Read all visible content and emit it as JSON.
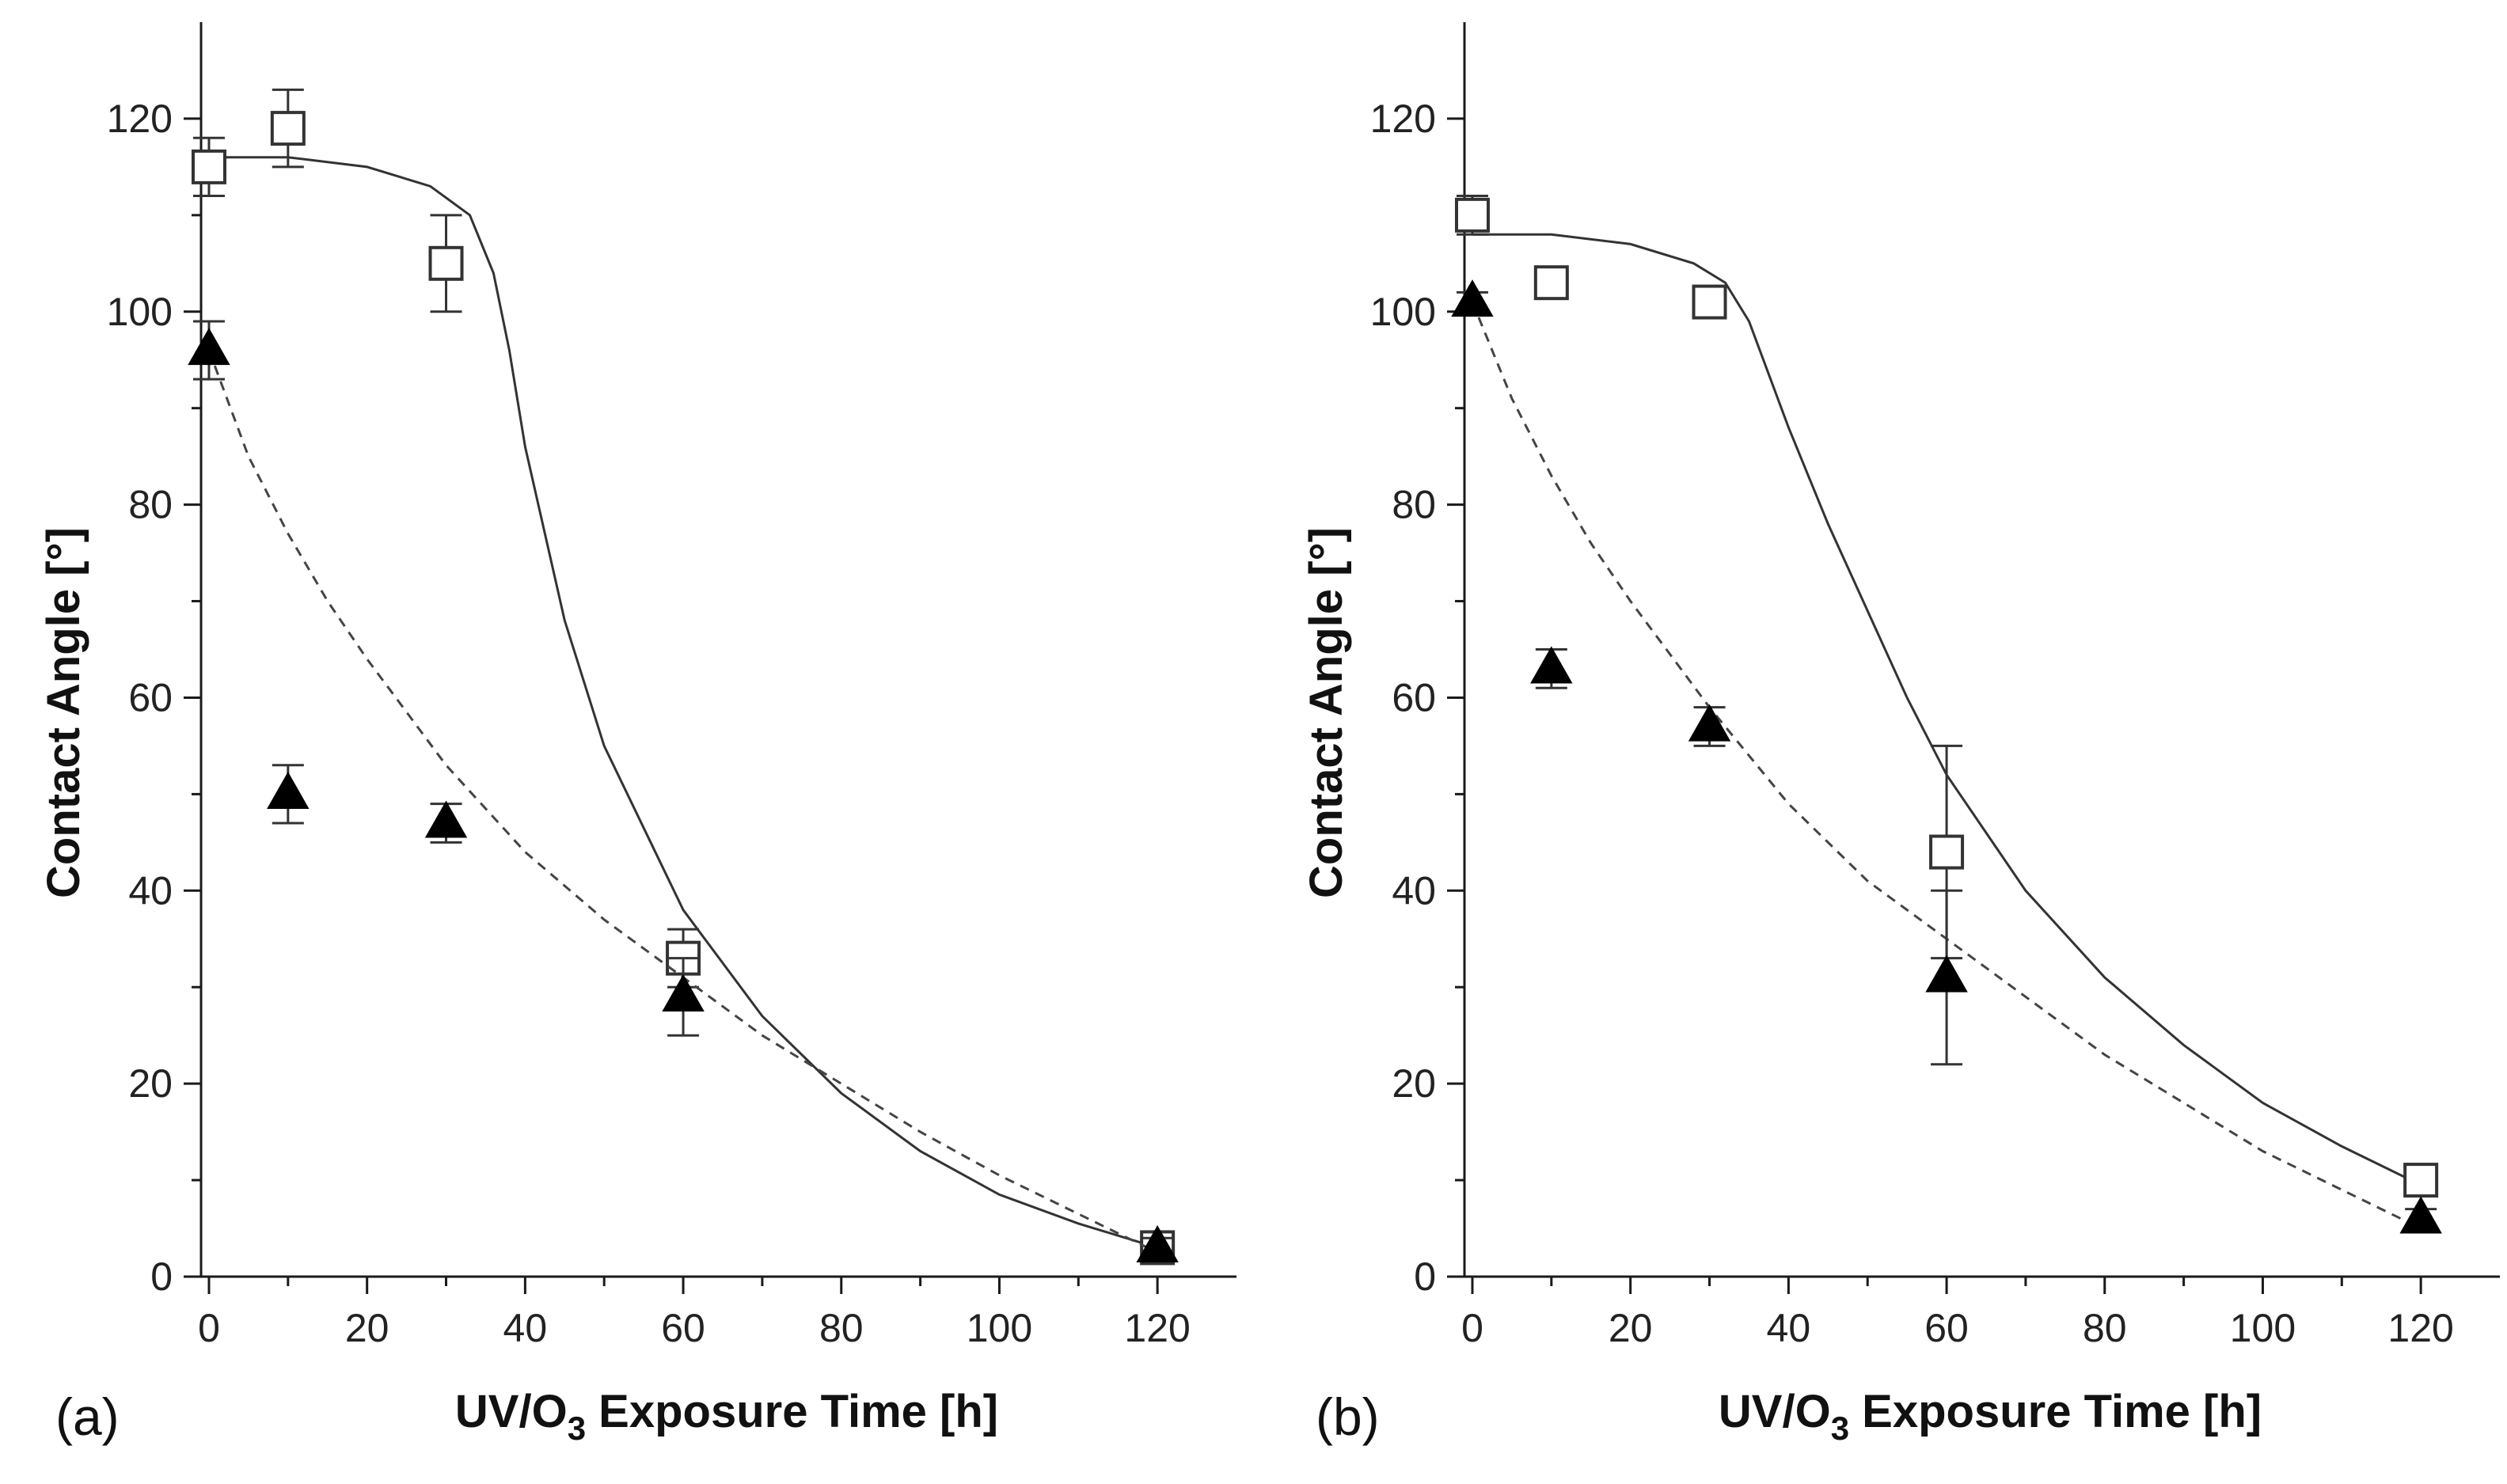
{
  "chart_data": [
    {
      "type": "scatter",
      "panel_label": "(a)",
      "xlabel_pre": "UV/O",
      "xlabel_sub": "3",
      "xlabel_post": " Exposure Time [h]",
      "ylabel": "Contact Angle [°]",
      "xlim": [
        -1,
        130
      ],
      "ylim": [
        0,
        130
      ],
      "xticks": [
        0,
        20,
        40,
        60,
        80,
        100,
        120
      ],
      "yticks": [
        0,
        20,
        40,
        60,
        80,
        100,
        120
      ],
      "series": [
        {
          "name": "open-squares",
          "marker": "square",
          "points": [
            {
              "x": 0,
              "y": 115,
              "err": 3
            },
            {
              "x": 10,
              "y": 119,
              "err": 4
            },
            {
              "x": 30,
              "y": 105,
              "err": 5
            },
            {
              "x": 60,
              "y": 33,
              "err": 3
            },
            {
              "x": 120,
              "y": 3,
              "err": 1
            }
          ],
          "fit": {
            "style": "solid",
            "points": [
              [
                0,
                116
              ],
              [
                10,
                116
              ],
              [
                20,
                115
              ],
              [
                28,
                113
              ],
              [
                33,
                110
              ],
              [
                36,
                104
              ],
              [
                38,
                96
              ],
              [
                40,
                86
              ],
              [
                45,
                68
              ],
              [
                50,
                55
              ],
              [
                60,
                38
              ],
              [
                70,
                27
              ],
              [
                80,
                19
              ],
              [
                90,
                13
              ],
              [
                100,
                8.5
              ],
              [
                110,
                5.5
              ],
              [
                120,
                3
              ]
            ]
          }
        },
        {
          "name": "filled-triangles",
          "marker": "triangle",
          "points": [
            {
              "x": 0,
              "y": 96,
              "err": 3
            },
            {
              "x": 10,
              "y": 50,
              "err": 3
            },
            {
              "x": 30,
              "y": 47,
              "err": 2
            },
            {
              "x": 60,
              "y": 29,
              "err": 4
            },
            {
              "x": 120,
              "y": 3,
              "err": 1
            }
          ],
          "fit": {
            "style": "dashed",
            "points": [
              [
                0,
                96
              ],
              [
                5,
                85
              ],
              [
                10,
                77
              ],
              [
                15,
                70
              ],
              [
                20,
                64
              ],
              [
                30,
                53
              ],
              [
                40,
                44
              ],
              [
                50,
                37
              ],
              [
                60,
                31
              ],
              [
                70,
                25
              ],
              [
                80,
                20
              ],
              [
                90,
                15
              ],
              [
                100,
                10.5
              ],
              [
                110,
                6.5
              ],
              [
                120,
                2.5
              ]
            ]
          }
        }
      ]
    },
    {
      "type": "scatter",
      "panel_label": "(b)",
      "xlabel_pre": "UV/O",
      "xlabel_sub": "3",
      "xlabel_post": " Exposure Time [h]",
      "ylabel": "Contact Angle [°]",
      "xlim": [
        -1,
        130
      ],
      "ylim": [
        0,
        130
      ],
      "xticks": [
        0,
        20,
        40,
        60,
        80,
        100,
        120
      ],
      "yticks": [
        0,
        20,
        40,
        60,
        80,
        100,
        120
      ],
      "series": [
        {
          "name": "open-squares",
          "marker": "square",
          "points": [
            {
              "x": 0,
              "y": 110,
              "err": 2
            },
            {
              "x": 10,
              "y": 103,
              "err": 1
            },
            {
              "x": 30,
              "y": 101,
              "err": 1
            },
            {
              "x": 60,
              "y": 44,
              "err": 11
            },
            {
              "x": 120,
              "y": 10,
              "err": 1
            }
          ],
          "fit": {
            "style": "solid",
            "points": [
              [
                0,
                108
              ],
              [
                10,
                108
              ],
              [
                20,
                107
              ],
              [
                28,
                105
              ],
              [
                32,
                103
              ],
              [
                35,
                99
              ],
              [
                40,
                88
              ],
              [
                45,
                78
              ],
              [
                50,
                69
              ],
              [
                55,
                60
              ],
              [
                60,
                52
              ],
              [
                70,
                40
              ],
              [
                80,
                31
              ],
              [
                90,
                24
              ],
              [
                100,
                18
              ],
              [
                110,
                13.5
              ],
              [
                120,
                9.5
              ]
            ]
          }
        },
        {
          "name": "filled-triangles",
          "marker": "triangle",
          "points": [
            {
              "x": 0,
              "y": 101,
              "err": 1
            },
            {
              "x": 10,
              "y": 63,
              "err": 2
            },
            {
              "x": 30,
              "y": 57,
              "err": 2
            },
            {
              "x": 60,
              "y": 31,
              "err": 9
            },
            {
              "x": 120,
              "y": 6,
              "err": 1
            }
          ],
          "fit": {
            "style": "dashed",
            "points": [
              [
                0,
                101
              ],
              [
                5,
                91
              ],
              [
                10,
                83
              ],
              [
                15,
                76
              ],
              [
                20,
                70
              ],
              [
                30,
                59
              ],
              [
                40,
                49
              ],
              [
                50,
                41
              ],
              [
                60,
                35
              ],
              [
                70,
                29
              ],
              [
                80,
                23
              ],
              [
                90,
                18
              ],
              [
                100,
                13
              ],
              [
                110,
                9
              ],
              [
                120,
                5
              ]
            ]
          }
        }
      ]
    }
  ]
}
